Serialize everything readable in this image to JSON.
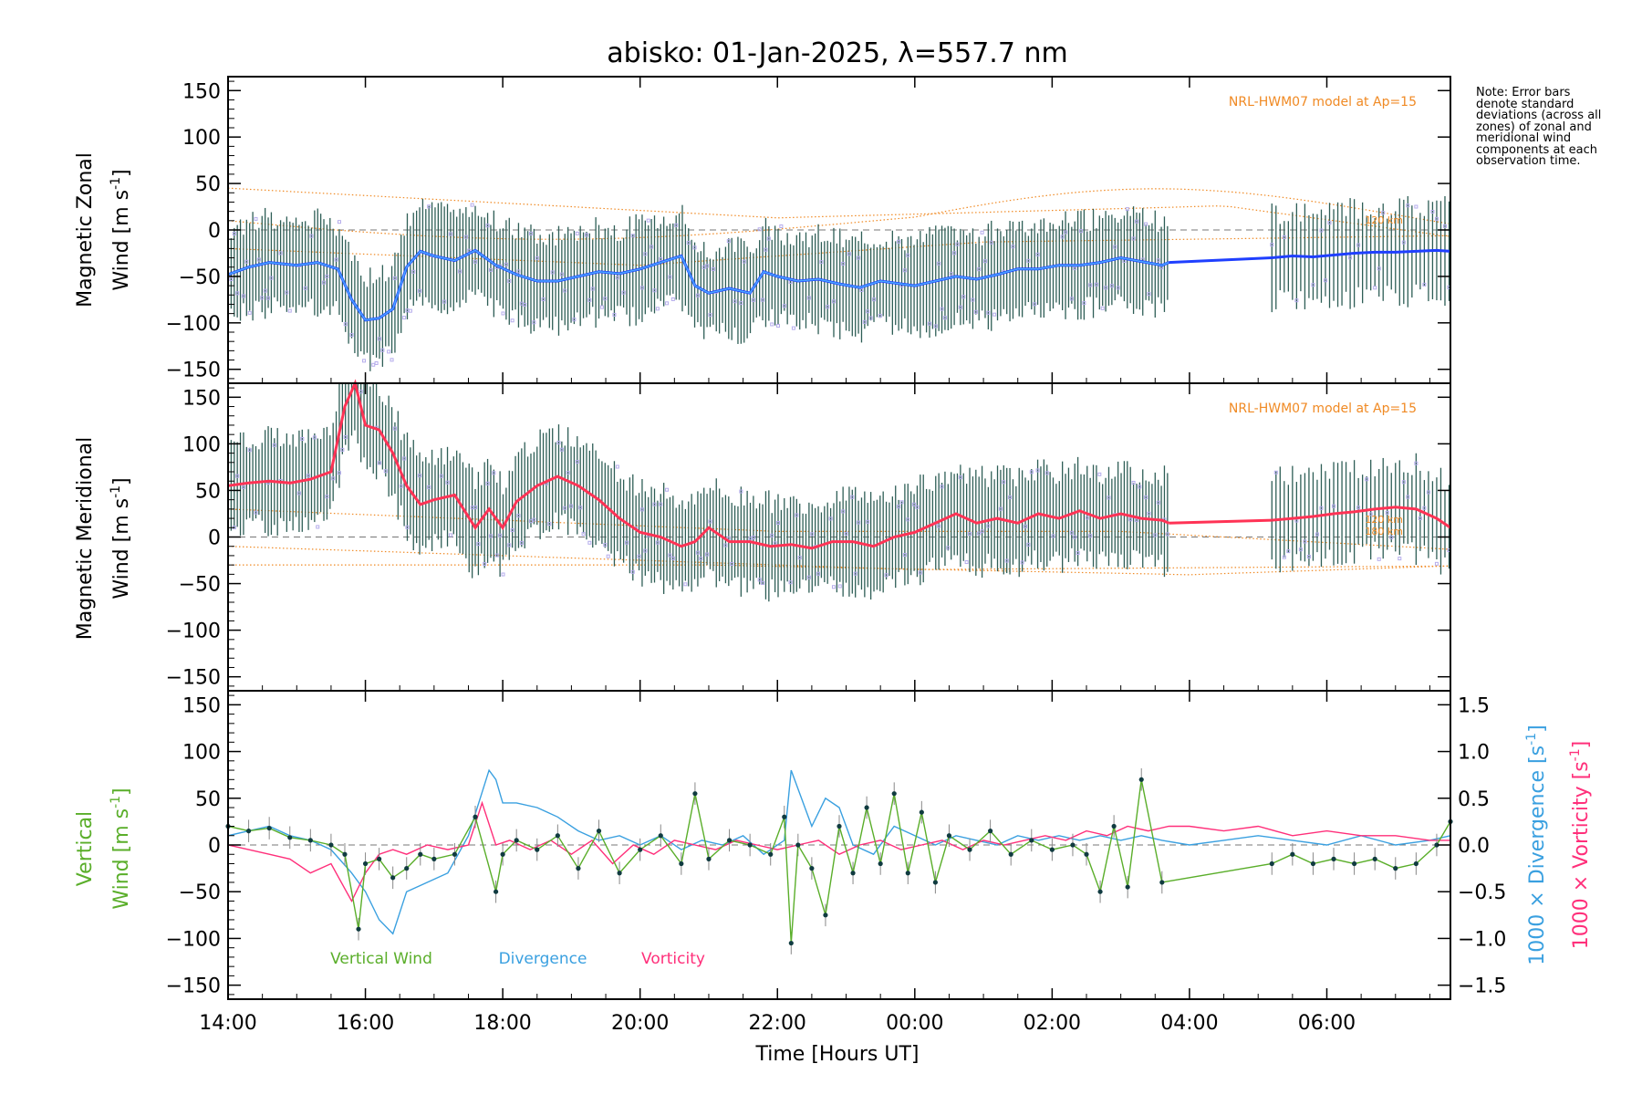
{
  "title": "abisko: 01-Jan-2025, λ=557.7 nm",
  "note": "Note: Error bars denote standard deviations (across all zones) of zonal and meridional wind components at each observation time.",
  "xaxis": {
    "label": "Time [Hours UT]",
    "ticks": [
      {
        "t": 14,
        "label": "14:00"
      },
      {
        "t": 16,
        "label": "16:00"
      },
      {
        "t": 18,
        "label": "18:00"
      },
      {
        "t": 20,
        "label": "20:00"
      },
      {
        "t": 22,
        "label": "22:00"
      },
      {
        "t": 24,
        "label": "00:00"
      },
      {
        "t": 26,
        "label": "02:00"
      },
      {
        "t": 28,
        "label": "04:00"
      },
      {
        "t": 30,
        "label": "06:00"
      }
    ],
    "range": [
      14,
      31.8
    ]
  },
  "colors": {
    "zonal": "#1f3fff",
    "zonal_light": "#4aa8ff",
    "meridional": "#ff3355",
    "model": "#f08a24",
    "scatter": "#b5acec",
    "vertical": "#5aae2a",
    "divergence": "#3aa0e0",
    "vorticity": "#ff2f7a",
    "errorbar": "#2e5e56"
  },
  "chart_data": [
    {
      "type": "line",
      "panel": "zonal",
      "ylabel": "Magnetic Zonal Wind [m s-1]",
      "ylabel_line1": "Magnetic Zonal",
      "ylabel_line2": "Wind [m s",
      "ylabel_sup": "-1",
      "ylabel_close": "]",
      "ylim": [
        -165,
        165
      ],
      "yticks": [
        150,
        100,
        50,
        0,
        -50,
        -100,
        -150
      ],
      "model_label": "NRL-HWM07 model at Ap=15",
      "model_level_label": "120 km",
      "series": [
        {
          "role": "mean",
          "x": [
            14.0,
            14.3,
            14.6,
            15.0,
            15.3,
            15.6,
            15.8,
            16.0,
            16.2,
            16.4,
            16.6,
            16.8,
            17.0,
            17.3,
            17.6,
            17.9,
            18.2,
            18.5,
            18.8,
            19.1,
            19.4,
            19.7,
            20.0,
            20.3,
            20.6,
            20.8,
            21.0,
            21.3,
            21.6,
            21.8,
            22.0,
            22.3,
            22.6,
            22.9,
            23.2,
            23.5,
            23.8,
            24.0,
            24.3,
            24.6,
            24.9,
            25.2,
            25.5,
            25.8,
            26.1,
            26.4,
            26.7,
            27.0,
            27.3,
            27.6,
            27.7
          ],
          "values": [
            -48,
            -40,
            -35,
            -38,
            -35,
            -42,
            -75,
            -97,
            -95,
            -85,
            -40,
            -23,
            -28,
            -33,
            -22,
            -38,
            -48,
            -55,
            -55,
            -50,
            -45,
            -47,
            -42,
            -35,
            -28,
            -60,
            -68,
            -63,
            -68,
            -45,
            -50,
            -55,
            -53,
            -58,
            -62,
            -55,
            -58,
            -60,
            -55,
            -50,
            -53,
            -48,
            -42,
            -42,
            -38,
            -38,
            -35,
            -30,
            -34,
            -38,
            -35
          ]
        },
        {
          "role": "interpolated",
          "x": [
            27.7,
            29.2
          ],
          "values": [
            -35,
            -30
          ]
        },
        {
          "role": "mean-late",
          "x": [
            29.2,
            29.5,
            29.8,
            30.1,
            30.4,
            30.7,
            31.0,
            31.3,
            31.6,
            31.8
          ],
          "values": [
            -30,
            -28,
            -29,
            -27,
            -25,
            -24,
            -24,
            -23,
            -22,
            -23
          ]
        }
      ]
    },
    {
      "type": "line",
      "panel": "meridional",
      "ylabel": "Magnetic Meridional Wind [m s-1]",
      "ylabel_line1": "Magnetic Meridional",
      "ylabel_line2": "Wind [m s",
      "ylabel_sup": "-1",
      "ylabel_close": "]",
      "ylim": [
        -165,
        165
      ],
      "yticks": [
        150,
        100,
        50,
        0,
        -50,
        -100,
        -150
      ],
      "model_label": "NRL-HWM07 model at Ap=15",
      "model_level_label": "120 km",
      "model_level_label2": "180 km",
      "series": [
        {
          "role": "mean",
          "x": [
            14.0,
            14.3,
            14.6,
            14.9,
            15.2,
            15.5,
            15.7,
            15.85,
            16.0,
            16.2,
            16.4,
            16.6,
            16.8,
            17.0,
            17.3,
            17.6,
            17.8,
            18.0,
            18.2,
            18.5,
            18.8,
            19.1,
            19.4,
            19.7,
            20.0,
            20.3,
            20.6,
            20.8,
            21.0,
            21.3,
            21.6,
            21.9,
            22.2,
            22.5,
            22.8,
            23.1,
            23.4,
            23.7,
            24.0,
            24.3,
            24.6,
            24.9,
            25.2,
            25.5,
            25.8,
            26.1,
            26.4,
            26.7,
            27.0,
            27.3,
            27.6,
            27.7
          ],
          "values": [
            55,
            58,
            60,
            58,
            62,
            70,
            140,
            165,
            120,
            115,
            90,
            55,
            35,
            40,
            45,
            10,
            30,
            10,
            38,
            55,
            65,
            55,
            40,
            20,
            5,
            0,
            -10,
            -5,
            10,
            -5,
            -5,
            -10,
            -8,
            -12,
            -5,
            -5,
            -10,
            0,
            5,
            15,
            25,
            15,
            20,
            15,
            25,
            20,
            28,
            20,
            25,
            20,
            18,
            15
          ]
        },
        {
          "role": "interpolated",
          "x": [
            27.7,
            29.2
          ],
          "values": [
            15,
            18
          ]
        },
        {
          "role": "mean-late",
          "x": [
            29.2,
            29.5,
            29.8,
            30.1,
            30.4,
            30.7,
            31.0,
            31.3,
            31.6,
            31.8
          ],
          "values": [
            18,
            20,
            22,
            25,
            27,
            30,
            32,
            30,
            20,
            10
          ]
        }
      ]
    },
    {
      "type": "line",
      "panel": "vertical",
      "ylabel": "Vertical Wind [m s-1]",
      "ylabel_line1": "Vertical",
      "ylabel_line2": "Wind [m s",
      "ylabel_sup": "-1",
      "ylabel_close": "]",
      "ylim": [
        -165,
        165
      ],
      "yticks": [
        150,
        100,
        50,
        0,
        -50,
        -100,
        -150
      ],
      "y2label_div": "1000 × Divergence [s-1]",
      "y2label_div_text": "1000 × Divergence [s",
      "y2label_vor": "1000 × Vorticity [s-1]",
      "y2label_vor_text": "1000 × Vorticity [s",
      "y2label_sup": "-1",
      "y2label_close": "]",
      "y2lim": [
        -1.65,
        1.65
      ],
      "y2ticks": [
        {
          "v": 1.5,
          "label": "1.5"
        },
        {
          "v": 1.0,
          "label": "1.0"
        },
        {
          "v": 0.5,
          "label": "0.5"
        },
        {
          "v": 0.0,
          "label": "0.0"
        },
        {
          "v": -0.5,
          "label": "−0.5"
        },
        {
          "v": -1.0,
          "label": "−1.0"
        },
        {
          "v": -1.5,
          "label": "−1.5"
        }
      ],
      "legend": [
        {
          "label": "Vertical Wind",
          "color": "#5aae2a"
        },
        {
          "label": "Divergence",
          "color": "#3aa0e0"
        },
        {
          "label": "Vorticity",
          "color": "#ff2f7a"
        }
      ],
      "series": [
        {
          "name": "Vertical Wind",
          "axis": "left",
          "x": [
            14.0,
            14.3,
            14.6,
            14.9,
            15.2,
            15.5,
            15.7,
            15.9,
            16.0,
            16.2,
            16.4,
            16.6,
            16.8,
            17.0,
            17.3,
            17.6,
            17.9,
            18.0,
            18.2,
            18.5,
            18.8,
            19.1,
            19.4,
            19.7,
            20.0,
            20.3,
            20.6,
            20.8,
            21.0,
            21.3,
            21.6,
            21.9,
            22.1,
            22.2,
            22.3,
            22.5,
            22.7,
            22.9,
            23.1,
            23.3,
            23.5,
            23.7,
            23.9,
            24.1,
            24.3,
            24.5,
            24.8,
            25.1,
            25.4,
            25.7,
            26.0,
            26.3,
            26.5,
            26.7,
            26.9,
            27.1,
            27.3,
            27.6,
            29.2,
            29.5,
            29.8,
            30.1,
            30.4,
            30.7,
            31.0,
            31.3,
            31.6,
            31.8
          ],
          "values": [
            20,
            15,
            18,
            8,
            5,
            0,
            -10,
            -90,
            -20,
            -15,
            -35,
            -25,
            -10,
            -15,
            -10,
            30,
            -50,
            -10,
            5,
            -5,
            10,
            -25,
            15,
            -30,
            -5,
            10,
            -20,
            55,
            -15,
            5,
            0,
            -10,
            30,
            -105,
            0,
            -25,
            -75,
            20,
            -30,
            40,
            -20,
            55,
            -30,
            35,
            -40,
            10,
            -5,
            15,
            -10,
            5,
            -5,
            0,
            -10,
            -50,
            20,
            -45,
            70,
            -40,
            -20,
            -10,
            -20,
            -15,
            -20,
            -15,
            -25,
            -20,
            0,
            25
          ]
        },
        {
          "name": "Divergence",
          "axis": "right",
          "x": [
            14.0,
            14.3,
            14.6,
            14.9,
            15.2,
            15.5,
            15.8,
            16.0,
            16.2,
            16.4,
            16.6,
            16.9,
            17.2,
            17.5,
            17.8,
            17.9,
            18.0,
            18.2,
            18.5,
            18.8,
            19.1,
            19.4,
            19.7,
            20.0,
            20.3,
            20.6,
            20.9,
            21.2,
            21.5,
            21.8,
            22.1,
            22.2,
            22.3,
            22.5,
            22.7,
            22.9,
            23.1,
            23.4,
            23.7,
            24.0,
            24.3,
            24.6,
            24.9,
            25.2,
            25.5,
            25.8,
            26.1,
            26.4,
            26.7,
            27.0,
            27.3,
            27.6,
            28.0,
            28.5,
            29.0,
            29.5,
            30.0,
            30.5,
            31.0,
            31.5,
            31.8
          ],
          "values": [
            0.1,
            0.15,
            0.2,
            0.1,
            0.05,
            -0.05,
            -0.3,
            -0.5,
            -0.8,
            -0.95,
            -0.5,
            -0.4,
            -0.3,
            0.1,
            0.8,
            0.7,
            0.45,
            0.45,
            0.4,
            0.3,
            0.15,
            0.05,
            0.1,
            0.0,
            0.1,
            -0.05,
            0.05,
            0.0,
            0.1,
            -0.1,
            0.05,
            0.8,
            0.6,
            0.2,
            0.5,
            0.4,
            0.0,
            -0.1,
            0.2,
            0.1,
            0.0,
            0.1,
            0.05,
            0.0,
            0.1,
            0.05,
            0.1,
            0.05,
            0.1,
            0.05,
            0.1,
            0.05,
            0.0,
            0.05,
            0.1,
            0.05,
            0.0,
            0.1,
            0.0,
            0.05,
            0.1
          ]
        },
        {
          "name": "Vorticity",
          "axis": "right",
          "x": [
            14.0,
            14.3,
            14.6,
            14.9,
            15.2,
            15.5,
            15.8,
            16.0,
            16.2,
            16.4,
            16.6,
            16.9,
            17.2,
            17.5,
            17.7,
            17.9,
            18.1,
            18.4,
            18.7,
            19.0,
            19.3,
            19.6,
            19.9,
            20.2,
            20.5,
            20.8,
            21.1,
            21.4,
            21.7,
            22.0,
            22.3,
            22.6,
            22.9,
            23.2,
            23.5,
            23.8,
            24.1,
            24.4,
            24.7,
            25.0,
            25.3,
            25.6,
            25.9,
            26.2,
            26.5,
            26.8,
            27.1,
            27.4,
            27.7,
            28.0,
            28.5,
            29.0,
            29.5,
            30.0,
            30.5,
            31.0,
            31.5,
            31.8
          ],
          "values": [
            0.0,
            -0.05,
            -0.1,
            -0.15,
            -0.3,
            -0.2,
            -0.6,
            -0.3,
            -0.1,
            -0.05,
            -0.1,
            0.0,
            -0.05,
            0.0,
            0.45,
            0.0,
            0.05,
            -0.05,
            0.05,
            -0.1,
            0.05,
            -0.2,
            0.0,
            -0.1,
            0.05,
            0.0,
            -0.05,
            0.05,
            0.0,
            -0.05,
            0.0,
            0.05,
            -0.1,
            0.0,
            0.05,
            -0.05,
            0.0,
            0.05,
            -0.05,
            0.05,
            0.0,
            0.05,
            0.1,
            0.05,
            0.15,
            0.1,
            0.2,
            0.15,
            0.2,
            0.2,
            0.15,
            0.2,
            0.1,
            0.15,
            0.1,
            0.1,
            0.05,
            0.05
          ]
        }
      ]
    }
  ]
}
